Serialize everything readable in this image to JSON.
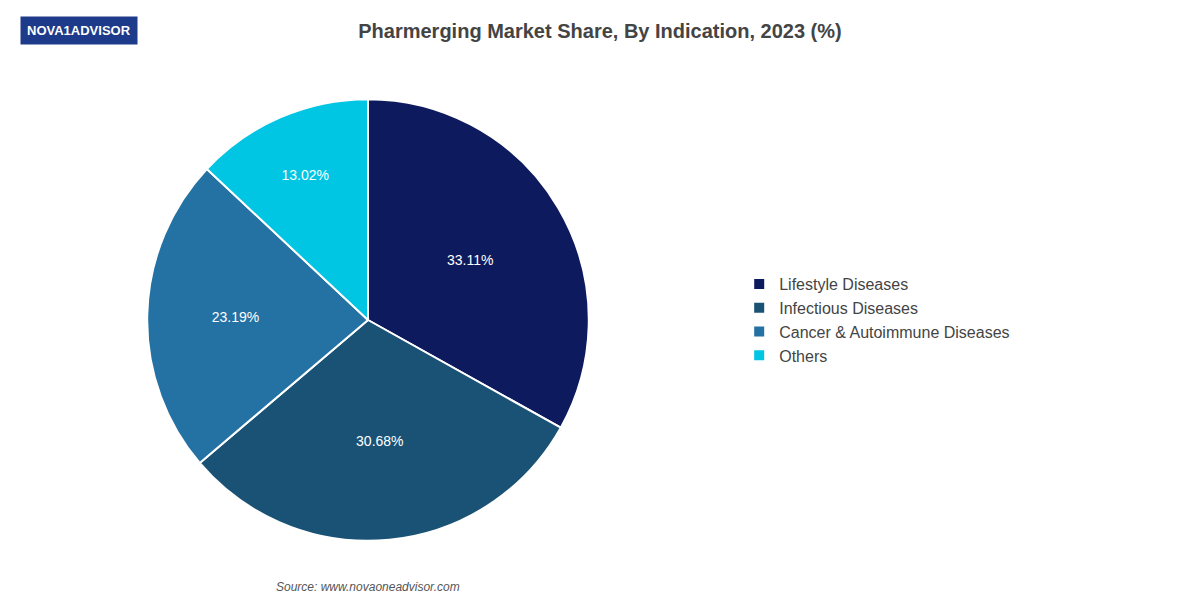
{
  "chart_data": {
    "type": "pie",
    "title": "Pharmerging Market Share, By Indication, 2023 (%)",
    "categories": [
      "Lifestyle Diseases",
      "Infectious Diseases",
      "Cancer & Autoimmune Diseases",
      "Others"
    ],
    "values": [
      33.11,
      30.68,
      23.19,
      13.02
    ],
    "value_labels": [
      "33.11%",
      "30.68%",
      "23.19%",
      "13.02%"
    ],
    "data_labels": true,
    "colors": [
      "#0d1b5e",
      "#1a5276",
      "#2471a3",
      "#00c5e3"
    ],
    "legend": "right",
    "annotations": [
      "NOVA1ADVISOR",
      "Source: www.novaoneadvisor.com"
    ]
  }
}
